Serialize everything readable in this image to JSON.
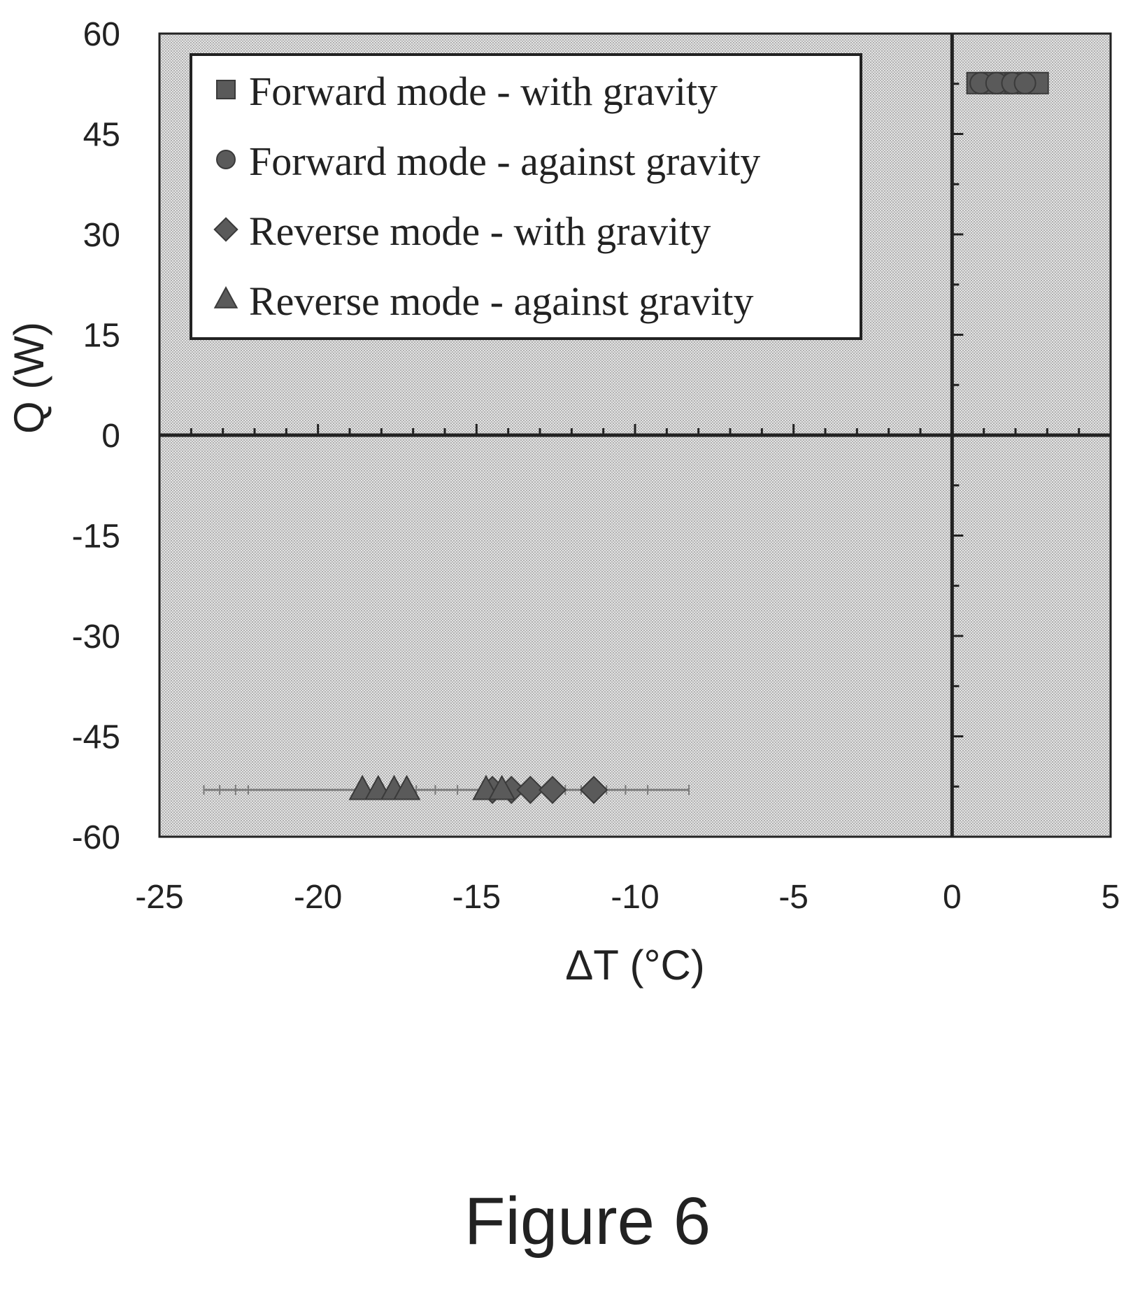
{
  "chart_data": {
    "type": "scatter",
    "title": "",
    "xlabel": "ΔT (°C)",
    "ylabel": "Q (W)",
    "xlim": [
      -25,
      5
    ],
    "ylim": [
      -60,
      60
    ],
    "xticks": [
      -25,
      -20,
      -15,
      -10,
      -5,
      0,
      5
    ],
    "yticks": [
      60,
      45,
      30,
      15,
      0,
      -15,
      -30,
      -45,
      -60
    ],
    "xtick_labels": [
      "-25",
      "-20",
      "-15",
      "-10",
      "-5",
      "0",
      "5"
    ],
    "ytick_labels": [
      "60",
      "45",
      "30",
      "15",
      "0",
      "-15",
      "-30",
      "-45",
      "-60"
    ],
    "grid": false,
    "legend_position": "top-left",
    "series": [
      {
        "name": "Forward mode - with gravity",
        "marker": "square",
        "points": [
          {
            "x": 0.8,
            "y": 52.6,
            "xerr": 0.3
          },
          {
            "x": 1.2,
            "y": 52.6,
            "xerr": 0.3
          },
          {
            "x": 1.6,
            "y": 52.6,
            "xerr": 0.3
          },
          {
            "x": 2.0,
            "y": 52.6,
            "xerr": 0.3
          },
          {
            "x": 2.4,
            "y": 52.6,
            "xerr": 0.3
          },
          {
            "x": 2.7,
            "y": 52.6,
            "xerr": 0.3
          }
        ]
      },
      {
        "name": "Forward mode - against gravity",
        "marker": "circle",
        "points": [
          {
            "x": 0.9,
            "y": 52.6,
            "xerr": 0.3
          },
          {
            "x": 1.4,
            "y": 52.6,
            "xerr": 0.3
          },
          {
            "x": 1.9,
            "y": 52.6,
            "xerr": 0.3
          },
          {
            "x": 2.3,
            "y": 52.6,
            "xerr": 0.3
          }
        ]
      },
      {
        "name": "Reverse mode - with gravity",
        "marker": "diamond",
        "points": [
          {
            "x": -14.5,
            "y": -53.0,
            "xerr": 3.0
          },
          {
            "x": -13.9,
            "y": -53.0,
            "xerr": 3.0
          },
          {
            "x": -13.3,
            "y": -53.0,
            "xerr": 3.0
          },
          {
            "x": -12.6,
            "y": -53.0,
            "xerr": 3.0
          },
          {
            "x": -11.3,
            "y": -53.0,
            "xerr": 3.0
          }
        ]
      },
      {
        "name": "Reverse mode - against gravity",
        "marker": "triangle",
        "points": [
          {
            "x": -18.6,
            "y": -53.0,
            "xerr": 5.0
          },
          {
            "x": -18.1,
            "y": -53.0,
            "xerr": 5.0
          },
          {
            "x": -17.6,
            "y": -53.0,
            "xerr": 5.0
          },
          {
            "x": -17.2,
            "y": -53.0,
            "xerr": 5.0
          },
          {
            "x": -14.7,
            "y": -53.0,
            "xerr": 3.0
          },
          {
            "x": -14.2,
            "y": -53.0,
            "xerr": 3.0
          }
        ]
      }
    ]
  },
  "caption": "Figure 6",
  "colors": {
    "plot_background": "#d4d4d4",
    "axis_line": "#222222",
    "marker": "#5a5a5a",
    "error_bar": "#7a7a7a",
    "legend_background": "#ffffff"
  }
}
